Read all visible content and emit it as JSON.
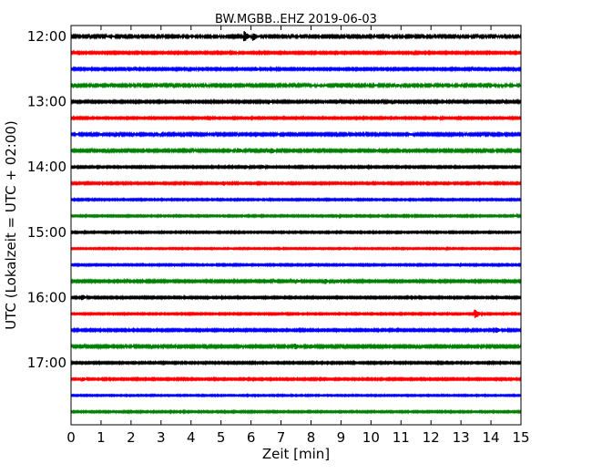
{
  "chart_data": {
    "type": "line",
    "title": "BW.MGBB..EHZ 2019-06-03",
    "xlabel": "Zeit  [min]",
    "ylabel": "UTC (Lokalzeit = UTC + 02:00)",
    "xlim": [
      0,
      15
    ],
    "x_ticks": [
      0,
      1,
      2,
      3,
      4,
      5,
      6,
      7,
      8,
      9,
      10,
      11,
      12,
      13,
      14,
      15
    ],
    "x_tick_labels": [
      "0",
      "1",
      "2",
      "3",
      "4",
      "5",
      "6",
      "7",
      "8",
      "9",
      "10",
      "11",
      "12",
      "13",
      "14",
      "15"
    ],
    "y_tick_labels": [
      "12:00",
      "13:00",
      "14:00",
      "15:00",
      "16:00",
      "17:00"
    ],
    "y_tick_rows": [
      0,
      4,
      8,
      12,
      16,
      20
    ],
    "grid": false,
    "color_cycle": [
      "#000000",
      "#ff0000",
      "#0000ff",
      "#008000"
    ],
    "traces": [
      {
        "start": "12:00",
        "amplitude": 0.12,
        "events": [
          {
            "t": 5.8,
            "a": 0.7
          },
          {
            "t": 6.1,
            "a": 0.55
          }
        ]
      },
      {
        "start": "12:15",
        "amplitude": 0.1,
        "events": []
      },
      {
        "start": "12:30",
        "amplitude": 0.1,
        "events": [
          {
            "t": 6.2,
            "a": 0.25
          }
        ]
      },
      {
        "start": "12:45",
        "amplitude": 0.12,
        "events": [
          {
            "t": 10.9,
            "a": 0.25
          }
        ]
      },
      {
        "start": "13:00",
        "amplitude": 0.1,
        "events": [
          {
            "t": 6.6,
            "a": 0.3
          }
        ]
      },
      {
        "start": "13:15",
        "amplitude": 0.09,
        "events": [
          {
            "t": 12.2,
            "a": 0.25
          }
        ]
      },
      {
        "start": "13:30",
        "amplitude": 0.11,
        "events": [
          {
            "t": 1.0,
            "a": 0.2
          },
          {
            "t": 11.3,
            "a": 0.2
          }
        ]
      },
      {
        "start": "13:45",
        "amplitude": 0.11,
        "events": [
          {
            "t": 5.6,
            "a": 0.35
          },
          {
            "t": 6.7,
            "a": 0.4
          }
        ]
      },
      {
        "start": "14:00",
        "amplitude": 0.09,
        "events": [
          {
            "t": 5.9,
            "a": 0.2
          },
          {
            "t": 6.4,
            "a": 0.25
          }
        ]
      },
      {
        "start": "14:15",
        "amplitude": 0.09,
        "events": [
          {
            "t": 5.1,
            "a": 0.3
          }
        ]
      },
      {
        "start": "14:30",
        "amplitude": 0.08,
        "events": []
      },
      {
        "start": "14:45",
        "amplitude": 0.08,
        "events": [
          {
            "t": 8.9,
            "a": 0.2
          },
          {
            "t": 14.8,
            "a": 0.2
          }
        ]
      },
      {
        "start": "15:00",
        "amplitude": 0.08,
        "events": []
      },
      {
        "start": "15:15",
        "amplitude": 0.07,
        "events": [
          {
            "t": 12.5,
            "a": 0.15
          }
        ]
      },
      {
        "start": "15:30",
        "amplitude": 0.08,
        "events": [
          {
            "t": 12.9,
            "a": 0.2
          }
        ]
      },
      {
        "start": "15:45",
        "amplitude": 0.1,
        "events": [
          {
            "t": 7.6,
            "a": 0.2
          },
          {
            "t": 8.5,
            "a": 0.35
          },
          {
            "t": 8.9,
            "a": 0.25
          }
        ]
      },
      {
        "start": "16:00",
        "amplitude": 0.09,
        "events": [
          {
            "t": 0.4,
            "a": 0.35
          }
        ]
      },
      {
        "start": "16:15",
        "amplitude": 0.08,
        "events": [
          {
            "t": 13.5,
            "a": 0.6
          }
        ]
      },
      {
        "start": "16:30",
        "amplitude": 0.1,
        "events": [
          {
            "t": 14.2,
            "a": 0.4
          }
        ]
      },
      {
        "start": "16:45",
        "amplitude": 0.11,
        "events": [
          {
            "t": 7.5,
            "a": 0.35
          },
          {
            "t": 8.0,
            "a": 0.35
          }
        ]
      },
      {
        "start": "17:00",
        "amplitude": 0.09,
        "events": [
          {
            "t": 2.2,
            "a": 0.2
          },
          {
            "t": 10.7,
            "a": 0.2
          }
        ]
      },
      {
        "start": "17:15",
        "amplitude": 0.09,
        "events": [
          {
            "t": 0.4,
            "a": 0.3
          }
        ]
      },
      {
        "start": "17:30",
        "amplitude": 0.07,
        "events": []
      },
      {
        "start": "17:45",
        "amplitude": 0.08,
        "events": []
      }
    ]
  }
}
